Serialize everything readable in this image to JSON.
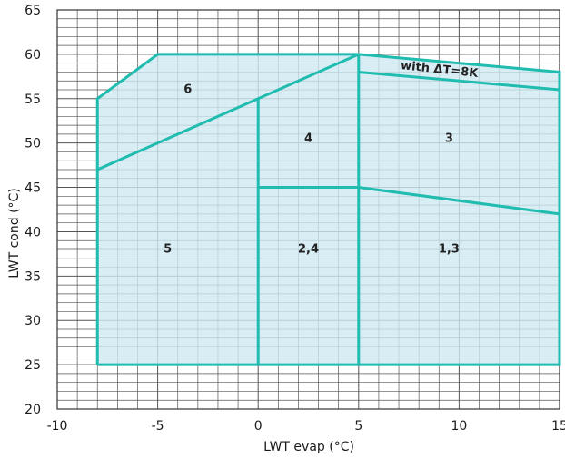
{
  "chart_data": {
    "type": "area",
    "title": "",
    "xlabel": "LWT evap (°C)",
    "ylabel": "LWT cond (°C)",
    "xlim": [
      -10,
      15
    ],
    "ylim": [
      20,
      65
    ],
    "x_ticks": [
      "-10",
      "-5",
      "0",
      "5",
      "10",
      "15"
    ],
    "y_ticks": [
      "20",
      "25",
      "30",
      "35",
      "40",
      "45",
      "50",
      "55",
      "60",
      "65"
    ],
    "grid": true,
    "colors": {
      "fill": "#cfe8f3",
      "line": "#1fbcaf",
      "grid": "#555555",
      "text": "#1a1a1a"
    },
    "envelope": [
      [
        -8,
        25
      ],
      [
        -8,
        55
      ],
      [
        -5,
        60
      ],
      [
        5,
        60
      ],
      [
        15,
        58
      ],
      [
        15,
        25
      ]
    ],
    "boundaries": [
      {
        "name": "envelope",
        "points": [
          [
            -8,
            25
          ],
          [
            -8,
            55
          ],
          [
            -5,
            60
          ],
          [
            5,
            60
          ],
          [
            15,
            58
          ],
          [
            15,
            25
          ],
          [
            -8,
            25
          ]
        ]
      },
      {
        "name": "diagonal",
        "points": [
          [
            -8,
            47
          ],
          [
            5,
            60
          ]
        ]
      },
      {
        "name": "vertical-0",
        "points": [
          [
            0,
            25
          ],
          [
            0,
            55
          ]
        ]
      },
      {
        "name": "vertical-5",
        "points": [
          [
            5,
            25
          ],
          [
            5,
            60
          ]
        ]
      },
      {
        "name": "split-45",
        "points": [
          [
            0,
            45
          ],
          [
            5,
            45
          ],
          [
            15,
            42
          ]
        ]
      },
      {
        "name": "delta-t-line",
        "points": [
          [
            5,
            58
          ],
          [
            15,
            56
          ]
        ]
      }
    ],
    "zone_labels": [
      {
        "text": "6",
        "x": -3.5,
        "y": 56.0
      },
      {
        "text": "4",
        "x": 2.5,
        "y": 50.5
      },
      {
        "text": "3",
        "x": 9.5,
        "y": 50.5
      },
      {
        "text": "5",
        "x": -4.5,
        "y": 38.0
      },
      {
        "text": "2,4",
        "x": 2.5,
        "y": 38.0
      },
      {
        "text": "1,3",
        "x": 9.5,
        "y": 38.0
      }
    ],
    "annotation": {
      "text": "with ΔT=8K",
      "x": 9.0,
      "y": 57.9,
      "angle": 6
    }
  }
}
